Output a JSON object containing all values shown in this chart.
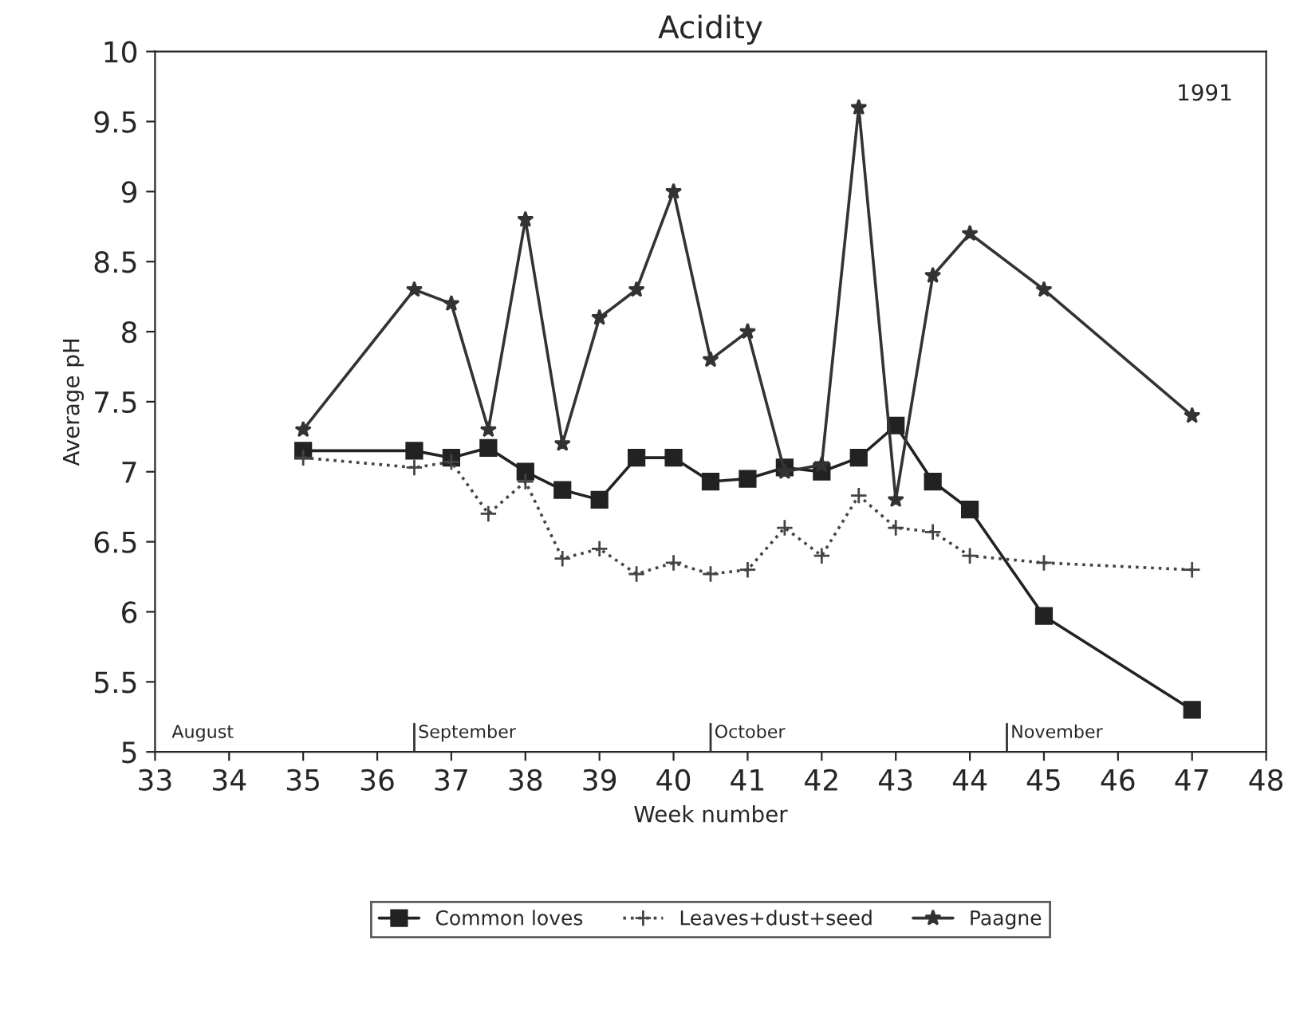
{
  "chart_data": {
    "type": "line",
    "title": "Acidity",
    "xlabel": "Week number",
    "ylabel": "Average pH",
    "xlim": [
      33,
      48
    ],
    "xticks": [
      33,
      34,
      35,
      36,
      37,
      38,
      39,
      40,
      41,
      42,
      43,
      44,
      45,
      46,
      47,
      48
    ],
    "ylim": [
      5,
      10
    ],
    "yticks": [
      5,
      5.5,
      6,
      6.5,
      7,
      7.5,
      8,
      8.5,
      9,
      9.5,
      10
    ],
    "grid": false,
    "legend": "bottom",
    "x": [
      35,
      36.5,
      37,
      37.5,
      38,
      38.5,
      39,
      39.5,
      40,
      40.5,
      41,
      41.5,
      42,
      42.5,
      43,
      43.5,
      44,
      45,
      47
    ],
    "series": [
      {
        "name": "Common loves",
        "color": "#222222",
        "marker": "square",
        "line_style": "solid",
        "values": [
          7.15,
          7.15,
          7.1,
          7.17,
          7.0,
          6.87,
          6.8,
          7.1,
          7.1,
          6.93,
          6.95,
          7.03,
          7.0,
          7.1,
          7.33,
          6.93,
          6.73,
          5.97,
          5.3
        ]
      },
      {
        "name": "Leaves+dust+seed",
        "color": "#444444",
        "marker": "cross",
        "line_style": "dotted",
        "values": [
          7.1,
          7.03,
          7.07,
          6.7,
          6.93,
          6.38,
          6.45,
          6.27,
          6.35,
          6.27,
          6.3,
          6.6,
          6.4,
          6.83,
          6.6,
          6.57,
          6.4,
          6.35,
          6.3
        ]
      },
      {
        "name": "Paagne",
        "color": "#333333",
        "marker": "star",
        "line_style": "solid",
        "values": [
          7.3,
          8.3,
          8.2,
          7.3,
          8.8,
          7.2,
          8.1,
          8.3,
          9.0,
          7.8,
          8.0,
          7.0,
          7.05,
          9.6,
          6.8,
          8.4,
          8.7,
          8.3,
          7.4
        ]
      }
    ],
    "ref_lines": [
      {
        "axis": "x",
        "value": 36.5,
        "label": "September"
      },
      {
        "axis": "x",
        "value": 40.5,
        "label": "October"
      },
      {
        "axis": "x",
        "value": 44.5,
        "label": "November"
      }
    ],
    "annotations": [
      "August",
      "1991"
    ]
  }
}
